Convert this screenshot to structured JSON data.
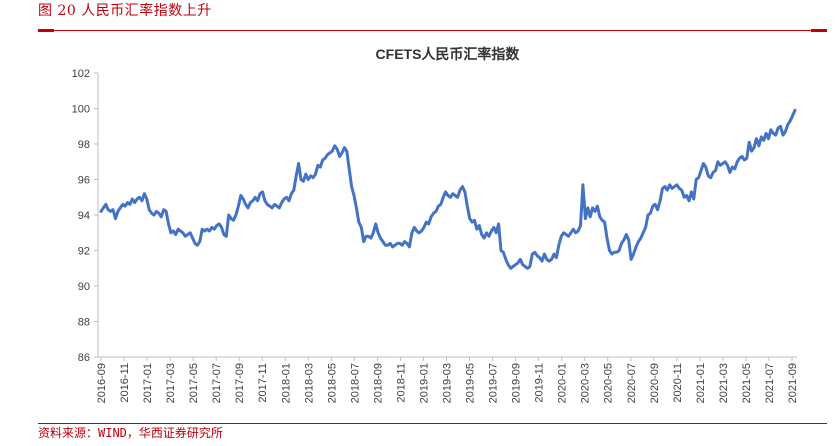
{
  "figure": {
    "caption": "图 20   人民币汇率指数上升",
    "source": "资料来源：WIND，华西证券研究所"
  },
  "colors": {
    "accent": "#c0000c",
    "series": "#4472c4",
    "axis": "#bfbfbf"
  },
  "chart_data": {
    "type": "line",
    "title": "CFETS人民币汇率指数",
    "xlabel": "",
    "ylabel": "",
    "ylim": [
      86,
      102
    ],
    "yticks": [
      86,
      88,
      90,
      92,
      94,
      96,
      98,
      100,
      102
    ],
    "grid": false,
    "legend": "none",
    "x_tick_labels": [
      "2016-09",
      "2016-11",
      "2017-01",
      "2017-03",
      "2017-05",
      "2017-07",
      "2017-09",
      "2017-11",
      "2018-01",
      "2018-03",
      "2018-05",
      "2018-07",
      "2018-09",
      "2018-11",
      "2019-01",
      "2019-03",
      "2019-05",
      "2019-07",
      "2019-09",
      "2019-11",
      "2020-01",
      "2020-03",
      "2020-05",
      "2020-07",
      "2020-09",
      "2020-11",
      "2021-01",
      "2021-03",
      "2021-05",
      "2021-07",
      "2021-09"
    ],
    "x_start": "2016-09-02",
    "x_end": "2021-09-24",
    "series": [
      {
        "name": "",
        "values": [
          94.2,
          94.4,
          94.6,
          94.3,
          94.2,
          94.3,
          93.8,
          94.2,
          94.4,
          94.6,
          94.5,
          94.7,
          94.6,
          94.9,
          94.7,
          94.9,
          95.0,
          94.8,
          95.2,
          94.9,
          94.3,
          94.1,
          94.0,
          94.2,
          94.1,
          93.9,
          94.3,
          94.2,
          93.5,
          93.0,
          93.1,
          92.9,
          93.2,
          93.1,
          93.0,
          92.8,
          92.9,
          93.0,
          92.7,
          92.4,
          92.3,
          92.5,
          93.2,
          93.1,
          93.2,
          93.1,
          93.3,
          93.2,
          93.4,
          93.5,
          93.3,
          92.9,
          92.8,
          94.0,
          93.8,
          93.7,
          94.0,
          94.5,
          95.1,
          94.9,
          94.6,
          94.4,
          94.7,
          94.8,
          95.0,
          94.8,
          95.2,
          95.3,
          94.8,
          94.6,
          94.5,
          94.4,
          94.6,
          94.5,
          94.4,
          94.7,
          94.9,
          95.0,
          94.8,
          95.2,
          95.4,
          96.2,
          96.9,
          96.0,
          95.9,
          96.3,
          96.0,
          96.2,
          96.1,
          96.3,
          96.8,
          96.7,
          97.1,
          97.2,
          97.4,
          97.5,
          97.6,
          97.9,
          97.7,
          97.3,
          97.5,
          97.8,
          97.6,
          96.6,
          95.6,
          95.1,
          94.4,
          93.6,
          93.3,
          92.5,
          92.8,
          92.8,
          92.7,
          93.0,
          93.5,
          93.0,
          92.7,
          92.5,
          92.3,
          92.3,
          92.4,
          92.2,
          92.3,
          92.4,
          92.4,
          92.3,
          92.5,
          92.4,
          92.2,
          93.0,
          93.3,
          93.1,
          93.0,
          93.1,
          93.3,
          93.6,
          93.5,
          93.9,
          94.1,
          94.2,
          94.5,
          94.6,
          95.0,
          95.3,
          95.1,
          95.0,
          95.2,
          95.1,
          95.0,
          95.4,
          95.6,
          95.3,
          94.5,
          93.8,
          93.6,
          93.7,
          93.2,
          93.4,
          92.9,
          92.7,
          93.0,
          92.8,
          93.1,
          93.3,
          93.0,
          93.5,
          92.0,
          91.9,
          91.5,
          91.2,
          91.0,
          91.1,
          91.2,
          91.3,
          91.5,
          91.2,
          91.1,
          91.0,
          91.1,
          91.8,
          91.9,
          91.7,
          91.6,
          91.4,
          91.8,
          91.5,
          91.4,
          91.5,
          91.8,
          91.6,
          92.3,
          92.8,
          93.0,
          92.9,
          92.8,
          93.0,
          93.2,
          93.0,
          93.1,
          93.4,
          95.7,
          93.8,
          94.4,
          93.9,
          94.4,
          94.2,
          94.5,
          93.9,
          93.7,
          93.6,
          92.7,
          92.0,
          91.8,
          91.9,
          91.9,
          92.0,
          92.4,
          92.6,
          92.9,
          92.6,
          91.5,
          91.8,
          92.2,
          92.5,
          92.7,
          93.0,
          93.3,
          94.0,
          94.1,
          94.5,
          94.6,
          94.3,
          94.8,
          95.5,
          95.6,
          95.4,
          95.7,
          95.5,
          95.6,
          95.7,
          95.5,
          95.4,
          95.0,
          95.1,
          94.8,
          95.3,
          94.9,
          96.0,
          96.1,
          96.5,
          96.9,
          96.7,
          96.2,
          96.1,
          96.4,
          96.5,
          97.0,
          96.8,
          96.9,
          97.0,
          96.8,
          96.4,
          96.7,
          96.6,
          97.0,
          97.2,
          97.3,
          97.1,
          97.2,
          98.1,
          97.6,
          97.8,
          98.3,
          97.9,
          98.4,
          98.2,
          98.6,
          98.3,
          98.8,
          98.6,
          98.5,
          98.9,
          99.0,
          98.5,
          98.7,
          99.1,
          99.3,
          99.6,
          99.9
        ]
      }
    ]
  }
}
